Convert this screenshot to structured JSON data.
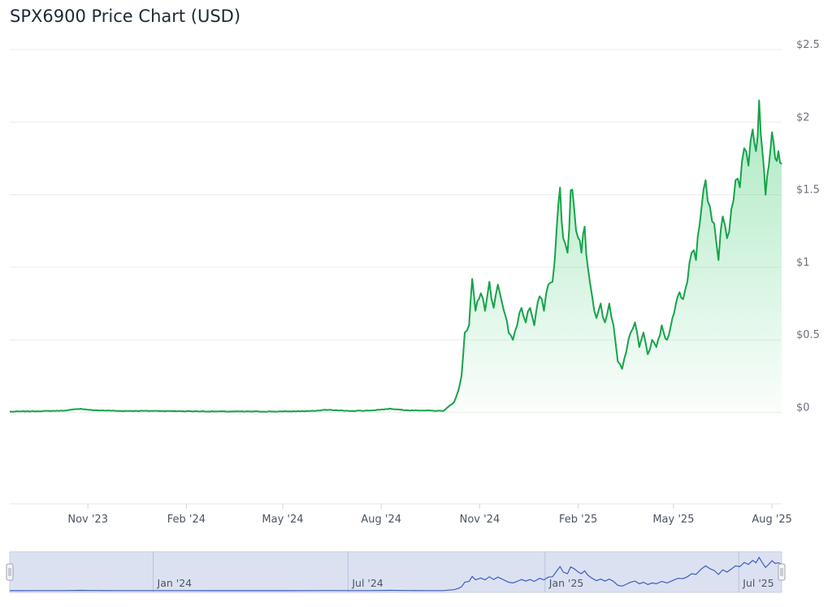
{
  "header": {
    "title": "SPX6900 Price Chart (USD)"
  },
  "colors": {
    "line": "#16a34a",
    "fill": "#22c55e",
    "grid": "#ececec",
    "navigator_line": "#3b5fc0",
    "navigator_fill": "#dbe1f1"
  },
  "chart_data": {
    "type": "area",
    "title": "SPX6900 Price Chart (USD)",
    "xlabel": "",
    "ylabel": "",
    "x_range": [
      "2023-08-20",
      "2025-08-10"
    ],
    "ylim": [
      -0.63,
      2.5
    ],
    "y_ticks": [
      0,
      0.5,
      1,
      1.5,
      2,
      2.5
    ],
    "y_tick_labels": [
      "$0",
      "$0.5",
      "$1",
      "$1.5",
      "$2",
      "$2.5"
    ],
    "x_tick_labels": [
      {
        "date": "2023-11-01",
        "label": "Nov '23"
      },
      {
        "date": "2024-02-01",
        "label": "Feb '24"
      },
      {
        "date": "2024-05-01",
        "label": "May '24"
      },
      {
        "date": "2024-08-01",
        "label": "Aug '24"
      },
      {
        "date": "2024-11-01",
        "label": "Nov '24"
      },
      {
        "date": "2025-02-01",
        "label": "Feb '25"
      },
      {
        "date": "2025-05-01",
        "label": "May '25"
      },
      {
        "date": "2025-08-01",
        "label": "Aug '25"
      }
    ],
    "grid": true,
    "series": [
      {
        "values": [
          [
            "2023-08-20",
            0.005
          ],
          [
            "2023-09-15",
            0.008
          ],
          [
            "2023-10-10",
            0.012
          ],
          [
            "2023-10-25",
            0.025
          ],
          [
            "2023-11-05",
            0.015
          ],
          [
            "2023-12-01",
            0.01
          ],
          [
            "2024-01-01",
            0.01
          ],
          [
            "2024-02-01",
            0.008
          ],
          [
            "2024-03-01",
            0.006
          ],
          [
            "2024-04-01",
            0.006
          ],
          [
            "2024-05-01",
            0.006
          ],
          [
            "2024-06-01",
            0.01
          ],
          [
            "2024-06-10",
            0.018
          ],
          [
            "2024-07-01",
            0.01
          ],
          [
            "2024-07-20",
            0.012
          ],
          [
            "2024-08-10",
            0.025
          ],
          [
            "2024-08-25",
            0.015
          ],
          [
            "2024-09-15",
            0.012
          ],
          [
            "2024-09-28",
            0.01
          ],
          [
            "2024-10-03",
            0.04
          ],
          [
            "2024-10-08",
            0.07
          ],
          [
            "2024-10-12",
            0.15
          ],
          [
            "2024-10-15",
            0.25
          ],
          [
            "2024-10-18",
            0.55
          ],
          [
            "2024-10-22",
            0.6
          ],
          [
            "2024-10-25",
            0.92
          ],
          [
            "2024-10-28",
            0.7
          ],
          [
            "2024-11-02",
            0.82
          ],
          [
            "2024-11-06",
            0.7
          ],
          [
            "2024-11-10",
            0.9
          ],
          [
            "2024-11-14",
            0.72
          ],
          [
            "2024-11-18",
            0.88
          ],
          [
            "2024-11-22",
            0.75
          ],
          [
            "2024-11-28",
            0.55
          ],
          [
            "2024-12-02",
            0.5
          ],
          [
            "2024-12-06",
            0.6
          ],
          [
            "2024-12-10",
            0.72
          ],
          [
            "2024-12-14",
            0.62
          ],
          [
            "2024-12-18",
            0.72
          ],
          [
            "2024-12-22",
            0.6
          ],
          [
            "2024-12-27",
            0.8
          ],
          [
            "2024-12-31",
            0.7
          ],
          [
            "2025-01-04",
            0.88
          ],
          [
            "2025-01-08",
            0.9
          ],
          [
            "2025-01-12",
            1.28
          ],
          [
            "2025-01-15",
            1.55
          ],
          [
            "2025-01-18",
            1.2
          ],
          [
            "2025-01-22",
            1.1
          ],
          [
            "2025-01-25",
            1.53
          ],
          [
            "2025-01-28",
            1.42
          ],
          [
            "2025-02-01",
            1.2
          ],
          [
            "2025-02-04",
            1.1
          ],
          [
            "2025-02-07",
            1.28
          ],
          [
            "2025-02-10",
            1.0
          ],
          [
            "2025-02-14",
            0.8
          ],
          [
            "2025-02-18",
            0.65
          ],
          [
            "2025-02-22",
            0.75
          ],
          [
            "2025-02-26",
            0.62
          ],
          [
            "2025-03-02",
            0.75
          ],
          [
            "2025-03-06",
            0.6
          ],
          [
            "2025-03-10",
            0.35
          ],
          [
            "2025-03-14",
            0.3
          ],
          [
            "2025-03-18",
            0.42
          ],
          [
            "2025-03-22",
            0.55
          ],
          [
            "2025-03-26",
            0.62
          ],
          [
            "2025-03-30",
            0.45
          ],
          [
            "2025-04-03",
            0.55
          ],
          [
            "2025-04-07",
            0.4
          ],
          [
            "2025-04-11",
            0.5
          ],
          [
            "2025-04-15",
            0.45
          ],
          [
            "2025-04-20",
            0.6
          ],
          [
            "2025-04-25",
            0.5
          ],
          [
            "2025-04-30",
            0.65
          ],
          [
            "2025-05-05",
            0.8
          ],
          [
            "2025-05-10",
            0.78
          ],
          [
            "2025-05-14",
            0.9
          ],
          [
            "2025-05-18",
            1.1
          ],
          [
            "2025-05-22",
            1.05
          ],
          [
            "2025-05-27",
            1.4
          ],
          [
            "2025-05-31",
            1.6
          ],
          [
            "2025-06-04",
            1.42
          ],
          [
            "2025-06-08",
            1.3
          ],
          [
            "2025-06-12",
            1.05
          ],
          [
            "2025-06-16",
            1.35
          ],
          [
            "2025-06-20",
            1.2
          ],
          [
            "2025-06-24",
            1.4
          ],
          [
            "2025-06-28",
            1.6
          ],
          [
            "2025-07-02",
            1.55
          ],
          [
            "2025-07-06",
            1.82
          ],
          [
            "2025-07-10",
            1.7
          ],
          [
            "2025-07-14",
            1.95
          ],
          [
            "2025-07-17",
            1.8
          ],
          [
            "2025-07-20",
            2.15
          ],
          [
            "2025-07-23",
            1.8
          ],
          [
            "2025-07-26",
            1.5
          ],
          [
            "2025-07-29",
            1.7
          ],
          [
            "2025-08-01",
            1.93
          ],
          [
            "2025-08-04",
            1.75
          ],
          [
            "2025-08-07",
            1.8
          ],
          [
            "2025-08-10",
            1.71
          ]
        ]
      }
    ],
    "navigator": {
      "x_tick_labels": [
        {
          "date": "2024-01-01",
          "label": "Jan '24"
        },
        {
          "date": "2024-07-01",
          "label": "Jul '24"
        },
        {
          "date": "2025-01-01",
          "label": "Jan '25"
        },
        {
          "date": "2025-07-01",
          "label": "Jul '25"
        }
      ]
    }
  }
}
